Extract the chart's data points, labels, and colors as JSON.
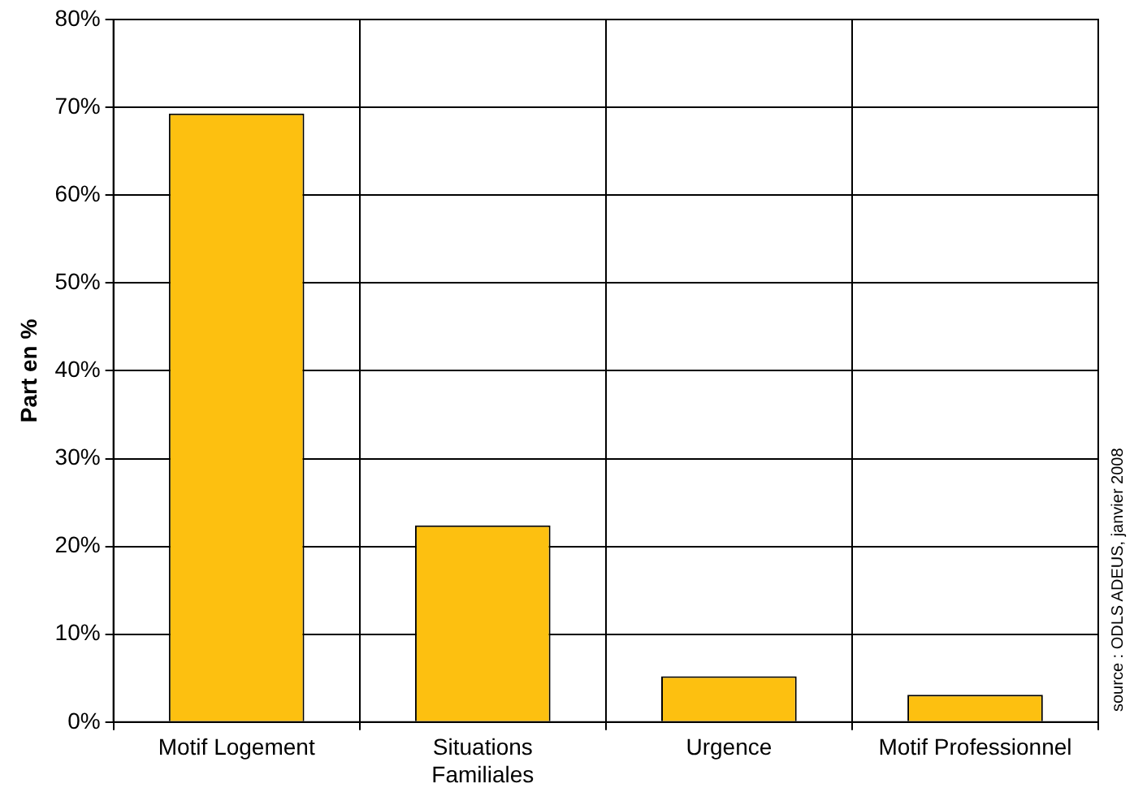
{
  "chart_data": {
    "type": "bar",
    "ylabel": "Part en %",
    "categories": [
      "Motif Logement",
      "Situations Familiales",
      "Urgence",
      "Motif Professionnel"
    ],
    "values": [
      69.3,
      22.4,
      5.2,
      3.1
    ],
    "color": "#fdc010",
    "ylim": [
      0,
      80
    ],
    "yticks": [
      {
        "value": 0,
        "label": "0%"
      },
      {
        "value": 10,
        "label": "10%"
      },
      {
        "value": 20,
        "label": "20%"
      },
      {
        "value": 30,
        "label": "30%"
      },
      {
        "value": 40,
        "label": "40%"
      },
      {
        "value": 50,
        "label": "50%"
      },
      {
        "value": 60,
        "label": "60%"
      },
      {
        "value": 70,
        "label": "70%"
      },
      {
        "value": 80,
        "label": "80%"
      }
    ],
    "grid": true,
    "legend": false,
    "annotations": [
      "source : ODLS ADEUS, janvier 2008"
    ]
  }
}
